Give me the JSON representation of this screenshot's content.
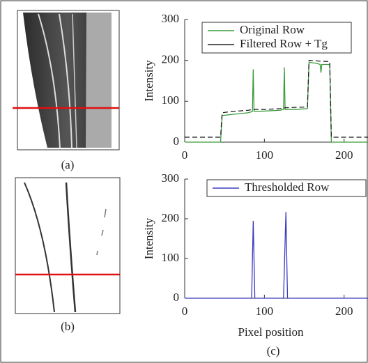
{
  "panel_labels": {
    "a": "(a)",
    "b": "(b)",
    "c": "(c)"
  },
  "chart_data": [
    {
      "type": "line",
      "ylabel": "Intensity",
      "x": [
        0,
        45,
        47,
        60,
        80,
        85,
        86,
        87,
        100,
        120,
        124,
        125,
        126,
        140,
        154,
        156,
        165,
        170,
        171,
        172,
        182,
        184,
        230
      ],
      "series": [
        {
          "name": "Original Row",
          "color": "#3a9a3a",
          "values": [
            0,
            0,
            65,
            68,
            72,
            75,
            178,
            75,
            76,
            78,
            80,
            183,
            80,
            80,
            82,
            195,
            193,
            190,
            170,
            190,
            190,
            0,
            0
          ]
        },
        {
          "name": "Filtered Row + Tg",
          "color": "#222222",
          "dashed": true,
          "values": [
            12,
            12,
            72,
            75,
            78,
            80,
            80,
            80,
            80,
            82,
            84,
            84,
            84,
            85,
            86,
            200,
            199,
            198,
            198,
            198,
            197,
            12,
            12
          ]
        }
      ],
      "xlim": [
        0,
        230
      ],
      "xticks": [
        0,
        100,
        200
      ],
      "ylim": [
        0,
        300
      ],
      "yticks": [
        0,
        100,
        200,
        300
      ]
    },
    {
      "type": "line",
      "ylabel": "Intensity",
      "xlabel": "Pixel position",
      "x": [
        0,
        84,
        86,
        88,
        124,
        127,
        129,
        230
      ],
      "series": [
        {
          "name": "Thresholded Row",
          "color": "#3b3bc0",
          "values": [
            0,
            0,
            195,
            0,
            0,
            217,
            0,
            0
          ]
        }
      ],
      "xlim": [
        0,
        230
      ],
      "xticks": [
        0,
        100,
        200
      ],
      "ylim": [
        0,
        300
      ],
      "yticks": [
        0,
        100,
        200,
        300
      ]
    }
  ]
}
